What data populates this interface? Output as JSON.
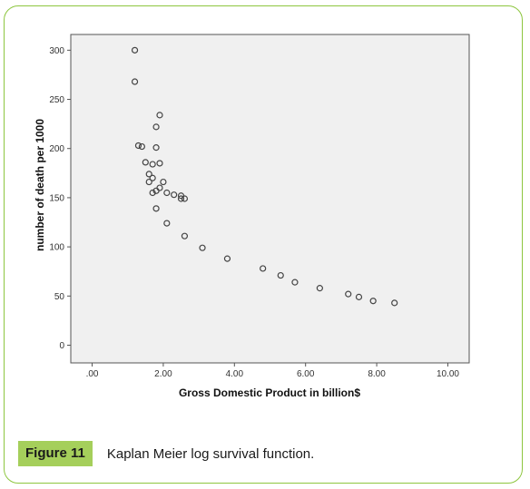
{
  "figure": {
    "label": "Figure 11",
    "caption": "Kaplan Meier log survival function."
  },
  "chart_data": {
    "type": "scatter",
    "title": "",
    "xlabel": "Gross Domestic Product in billion$",
    "ylabel": "number of death per 1000",
    "xlim": [
      -0.6,
      10.6
    ],
    "ylim": [
      -18,
      316
    ],
    "x_ticks": [
      ".00",
      "2.00",
      "4.00",
      "6.00",
      "8.00",
      "10.00"
    ],
    "y_ticks": [
      "0",
      "50",
      "100",
      "150",
      "200",
      "250",
      "300"
    ],
    "x_tick_values": [
      0,
      2,
      4,
      6,
      8,
      10
    ],
    "y_tick_values": [
      0,
      50,
      100,
      150,
      200,
      250,
      300
    ],
    "grid": false,
    "plot_background": "#f0f0f0",
    "marker_color": "#444444",
    "series": [
      {
        "points": [
          [
            1.2,
            300
          ],
          [
            1.2,
            268
          ],
          [
            1.3,
            203
          ],
          [
            1.4,
            202
          ],
          [
            1.9,
            234
          ],
          [
            1.8,
            222
          ],
          [
            1.8,
            201
          ],
          [
            1.5,
            186
          ],
          [
            1.7,
            184
          ],
          [
            1.9,
            185
          ],
          [
            1.6,
            174
          ],
          [
            1.7,
            170
          ],
          [
            1.6,
            166
          ],
          [
            2.0,
            166
          ],
          [
            1.9,
            160
          ],
          [
            1.8,
            157
          ],
          [
            1.7,
            155
          ],
          [
            2.1,
            155
          ],
          [
            2.3,
            153
          ],
          [
            2.5,
            152
          ],
          [
            2.5,
            149
          ],
          [
            2.6,
            149
          ],
          [
            1.8,
            139
          ],
          [
            2.1,
            124
          ],
          [
            2.6,
            111
          ],
          [
            3.1,
            99
          ],
          [
            3.8,
            88
          ],
          [
            4.8,
            78
          ],
          [
            5.3,
            71
          ],
          [
            5.7,
            64
          ],
          [
            6.4,
            58
          ],
          [
            7.2,
            52
          ],
          [
            7.5,
            49
          ],
          [
            7.9,
            45
          ],
          [
            8.5,
            43
          ]
        ]
      }
    ]
  }
}
